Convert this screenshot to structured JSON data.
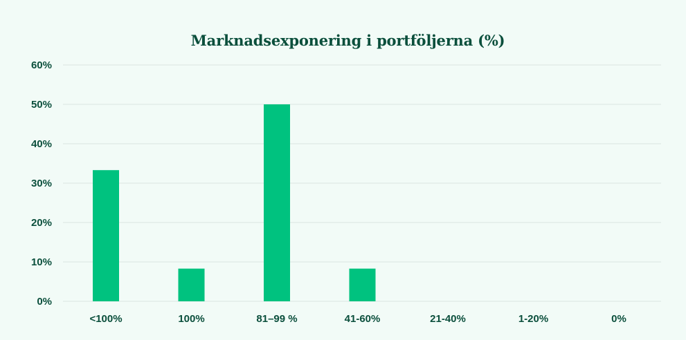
{
  "chart_data": {
    "type": "bar",
    "title": "Marknadsexponering i portföljerna (%)",
    "categories": [
      "<100%",
      "100%",
      "81–99 %",
      "41-60%",
      "21-40%",
      "1-20%",
      "0%"
    ],
    "values": [
      33.3,
      8.3,
      50.0,
      8.3,
      0,
      0,
      0
    ],
    "ylim": [
      0,
      60
    ],
    "yticks": [
      0,
      10,
      20,
      30,
      40,
      50,
      60
    ],
    "ytick_labels": [
      "0%",
      "10%",
      "20%",
      "30%",
      "40%",
      "50%",
      "60%"
    ],
    "xlabel": "",
    "ylabel": "",
    "grid": true,
    "legend": "none",
    "colors": {
      "bar": "#00c27f",
      "text": "#0b4f3c",
      "grid": "#d9e6e0",
      "background": "#f2fbf7"
    }
  }
}
